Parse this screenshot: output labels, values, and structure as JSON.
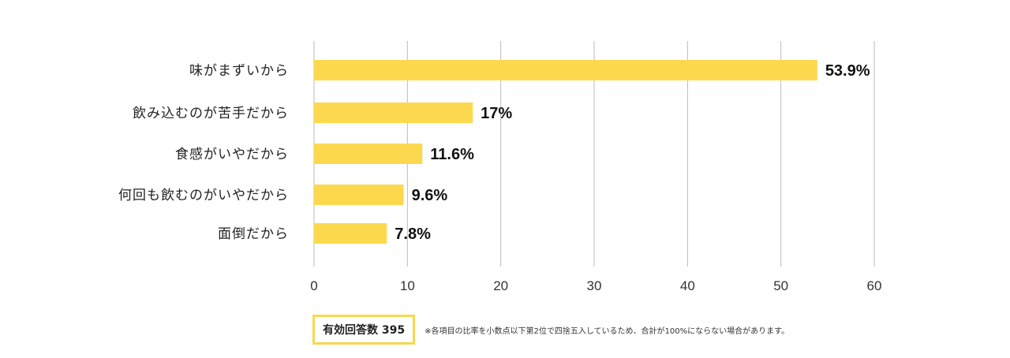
{
  "chart_data": {
    "type": "bar",
    "orientation": "horizontal",
    "categories": [
      "味がまずいから",
      "飲み込むのが苦手だから",
      "食感がいやだから",
      "何回も飲むのがいやだから",
      "面倒だから"
    ],
    "values": [
      53.9,
      17,
      11.6,
      9.6,
      7.8
    ],
    "value_labels": [
      "53.9%",
      "17%",
      "11.6%",
      "9.6%",
      "7.8%"
    ],
    "xlim": [
      0,
      60
    ],
    "xticks": [
      0,
      10,
      20,
      30,
      40,
      50,
      60
    ],
    "grid": true,
    "bar_color": "#fcd84f",
    "grid_color": "#bbbbbb"
  },
  "footer": {
    "response_count": "有効回答数 395",
    "note": "※各項目の比率を小数点以下第2位で四捨五入しているため、合計が100%にならない場合があります。"
  },
  "colors": {
    "accent_border": "#f7d84f"
  }
}
